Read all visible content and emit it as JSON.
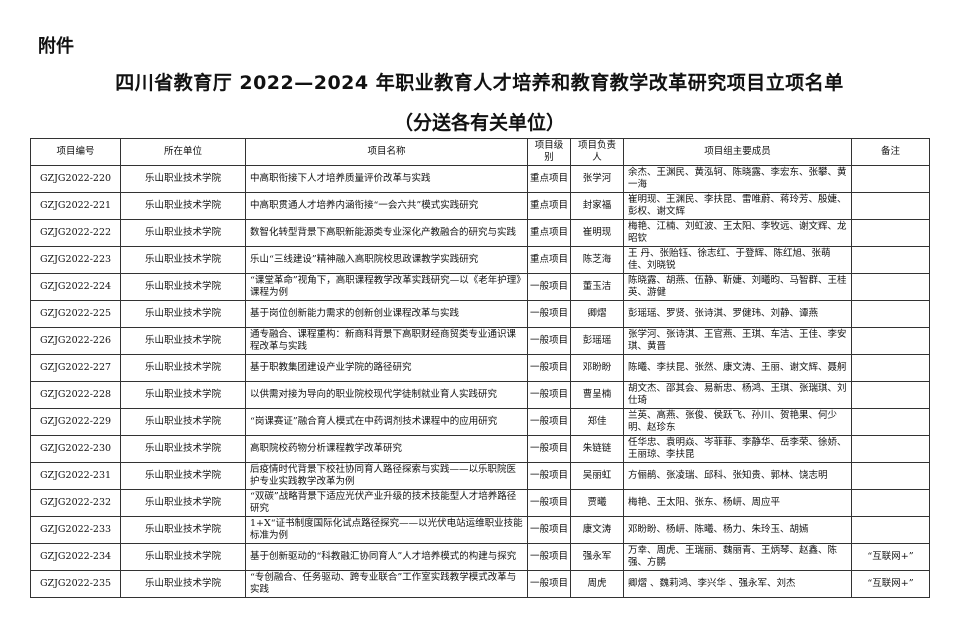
{
  "attachment": "附件",
  "title": "四川省教育厅 2022—2024 年职业教育人才培养和教育教学改革研究项目立项名单",
  "subtitle": "（分送各有关单位）",
  "headers": [
    "项目编号",
    "所在单位",
    "项目名称",
    "项目级别",
    "项目负责人",
    "项目组主要成员",
    "备注"
  ],
  "rows": [
    {
      "id": "GZJG2022-220",
      "unit": "乐山职业技术学院",
      "name": "中高职衔接下人才培养质量评价改革与实践",
      "level": "重点项目",
      "leader": "张学河",
      "members": "余杰、王渊民、黄泓轲、陈晓露、李宏东、张攀、黄一海",
      "note": ""
    },
    {
      "id": "GZJG2022-221",
      "unit": "乐山职业技术学院",
      "name": "中高职贯通人才培养内涵衔接“一会六共”模式实践研究",
      "level": "重点项目",
      "leader": "封家福",
      "members": "崔明现、王渊民、李扶昆、雷唯蔚、蒋玲芳、殷婕、彭权、谢文辉",
      "note": ""
    },
    {
      "id": "GZJG2022-222",
      "unit": "乐山职业技术学院",
      "name": "数智化转型背景下高职新能源类专业深化产教融合的研究与实践",
      "level": "重点项目",
      "leader": "崔明现",
      "members": "梅艳、江楠、刘虹波、王太阳、李牧远、谢文辉、龙昭钦",
      "note": ""
    },
    {
      "id": "GZJG2022-223",
      "unit": "乐山职业技术学院",
      "name": "乐山“三线建设”精神融入高职院校思政课教学实践研究",
      "level": "重点项目",
      "leader": "陈芝海",
      "members": "王 丹、张贻钰、徐志红、于登辉、陈红旭、张萌佳、刘晓锐",
      "note": ""
    },
    {
      "id": "GZJG2022-224",
      "unit": "乐山职业技术学院",
      "name": "“课堂革命”视角下，高职课程教学改革实践研究—以《老年护理》课程为例",
      "level": "一般项目",
      "leader": "董玉洁",
      "members": "陈晓露、胡燕、伍静、靳婕、刘曦昀、马智群、王桂英、游健",
      "note": ""
    },
    {
      "id": "GZJG2022-225",
      "unit": "乐山职业技术学院",
      "name": "基于岗位创新能力需求的创新创业课程改革与实践",
      "level": "一般项目",
      "leader": "卿熠",
      "members": "彭瑶瑶、罗贤、张诗淇、罗健玮、刘静、谭燕",
      "note": ""
    },
    {
      "id": "GZJG2022-226",
      "unit": "乐山职业技术学院",
      "name": "通专融合、课程重构：新商科背景下高职财经商贸类专业通识课程改革与实践",
      "level": "一般项目",
      "leader": "彭瑶瑶",
      "members": "张学河、张诗淇、王官燕、王琪、车洁、王佳、李安琪、黄晋",
      "note": ""
    },
    {
      "id": "GZJG2022-227",
      "unit": "乐山职业技术学院",
      "name": "基于职教集团建设产业学院的路径研究",
      "level": "一般项目",
      "leader": "邓盼盼",
      "members": "陈曦、李扶昆、张然、康文涛、王丽、谢文辉、聂舸",
      "note": ""
    },
    {
      "id": "GZJG2022-228",
      "unit": "乐山职业技术学院",
      "name": "以供需对接为导向的职业院校现代学徒制就业育人实践研究",
      "level": "一般项目",
      "leader": "曹呈楠",
      "members": "胡文杰、邵其会、易新忠、杨鸿、王琪、张瑞琪、刘仕琦",
      "note": ""
    },
    {
      "id": "GZJG2022-229",
      "unit": "乐山职业技术学院",
      "name": "“岗课赛证”融合育人模式在中药调剂技术课程中的应用研究",
      "level": "一般项目",
      "leader": "郑佳",
      "members": "兰英、高燕、张俊、侯跃飞、孙川、贺艳果、何少明、赵珍东",
      "note": ""
    },
    {
      "id": "GZJG2022-230",
      "unit": "乐山职业技术学院",
      "name": "高职院校药物分析课程教学改革研究",
      "level": "一般项目",
      "leader": "朱链链",
      "members": "任华忠、袁明焱、岑菲菲、李静华、岳李荣、徐娇、王丽琼、李扶昆",
      "note": ""
    },
    {
      "id": "GZJG2022-231",
      "unit": "乐山职业技术学院",
      "name": "后疫情时代背景下校社协同育人路径探索与实践——以乐职院医护专业实践教学改革为例",
      "level": "一般项目",
      "leader": "吴丽虹",
      "members": "方俪鹃、张凌瑞、邱科、张知贵、郭林、饶志明",
      "note": ""
    },
    {
      "id": "GZJG2022-232",
      "unit": "乐山职业技术学院",
      "name": "“双碳”战略背景下适应光伏产业升级的技术技能型人才培养路径研究",
      "level": "一般项目",
      "leader": "贾曦",
      "members": "梅艳、王太阳、张东、杨岍、周应平",
      "note": ""
    },
    {
      "id": "GZJG2022-233",
      "unit": "乐山职业技术学院",
      "name": "1+X“证书制度国际化试点路径探究——以光伏电站运维职业技能标准为例",
      "level": "一般项目",
      "leader": "康文涛",
      "members": "邓盼盼、杨岍、陈曦、杨力、朱玲玉、胡嫣",
      "note": ""
    },
    {
      "id": "GZJG2022-234",
      "unit": "乐山职业技术学院",
      "name": "基于创新驱动的“科教融汇协同育人”人才培养模式的构建与探究",
      "level": "一般项目",
      "leader": "强永军",
      "members": "万幸、周虎、王瑞丽、魏丽青、王炳琴、赵鑫、陈强、方鹏",
      "note": "“互联网+”"
    },
    {
      "id": "GZJG2022-235",
      "unit": "乐山职业技术学院",
      "name": "“专创融合、任务驱动、跨专业联合”工作室实践教学模式改革与实践",
      "level": "一般项目",
      "leader": "周虎",
      "members": "卿熠 、魏莉鸿、李兴华 、强永军、刘杰",
      "note": "“互联网+”"
    }
  ]
}
